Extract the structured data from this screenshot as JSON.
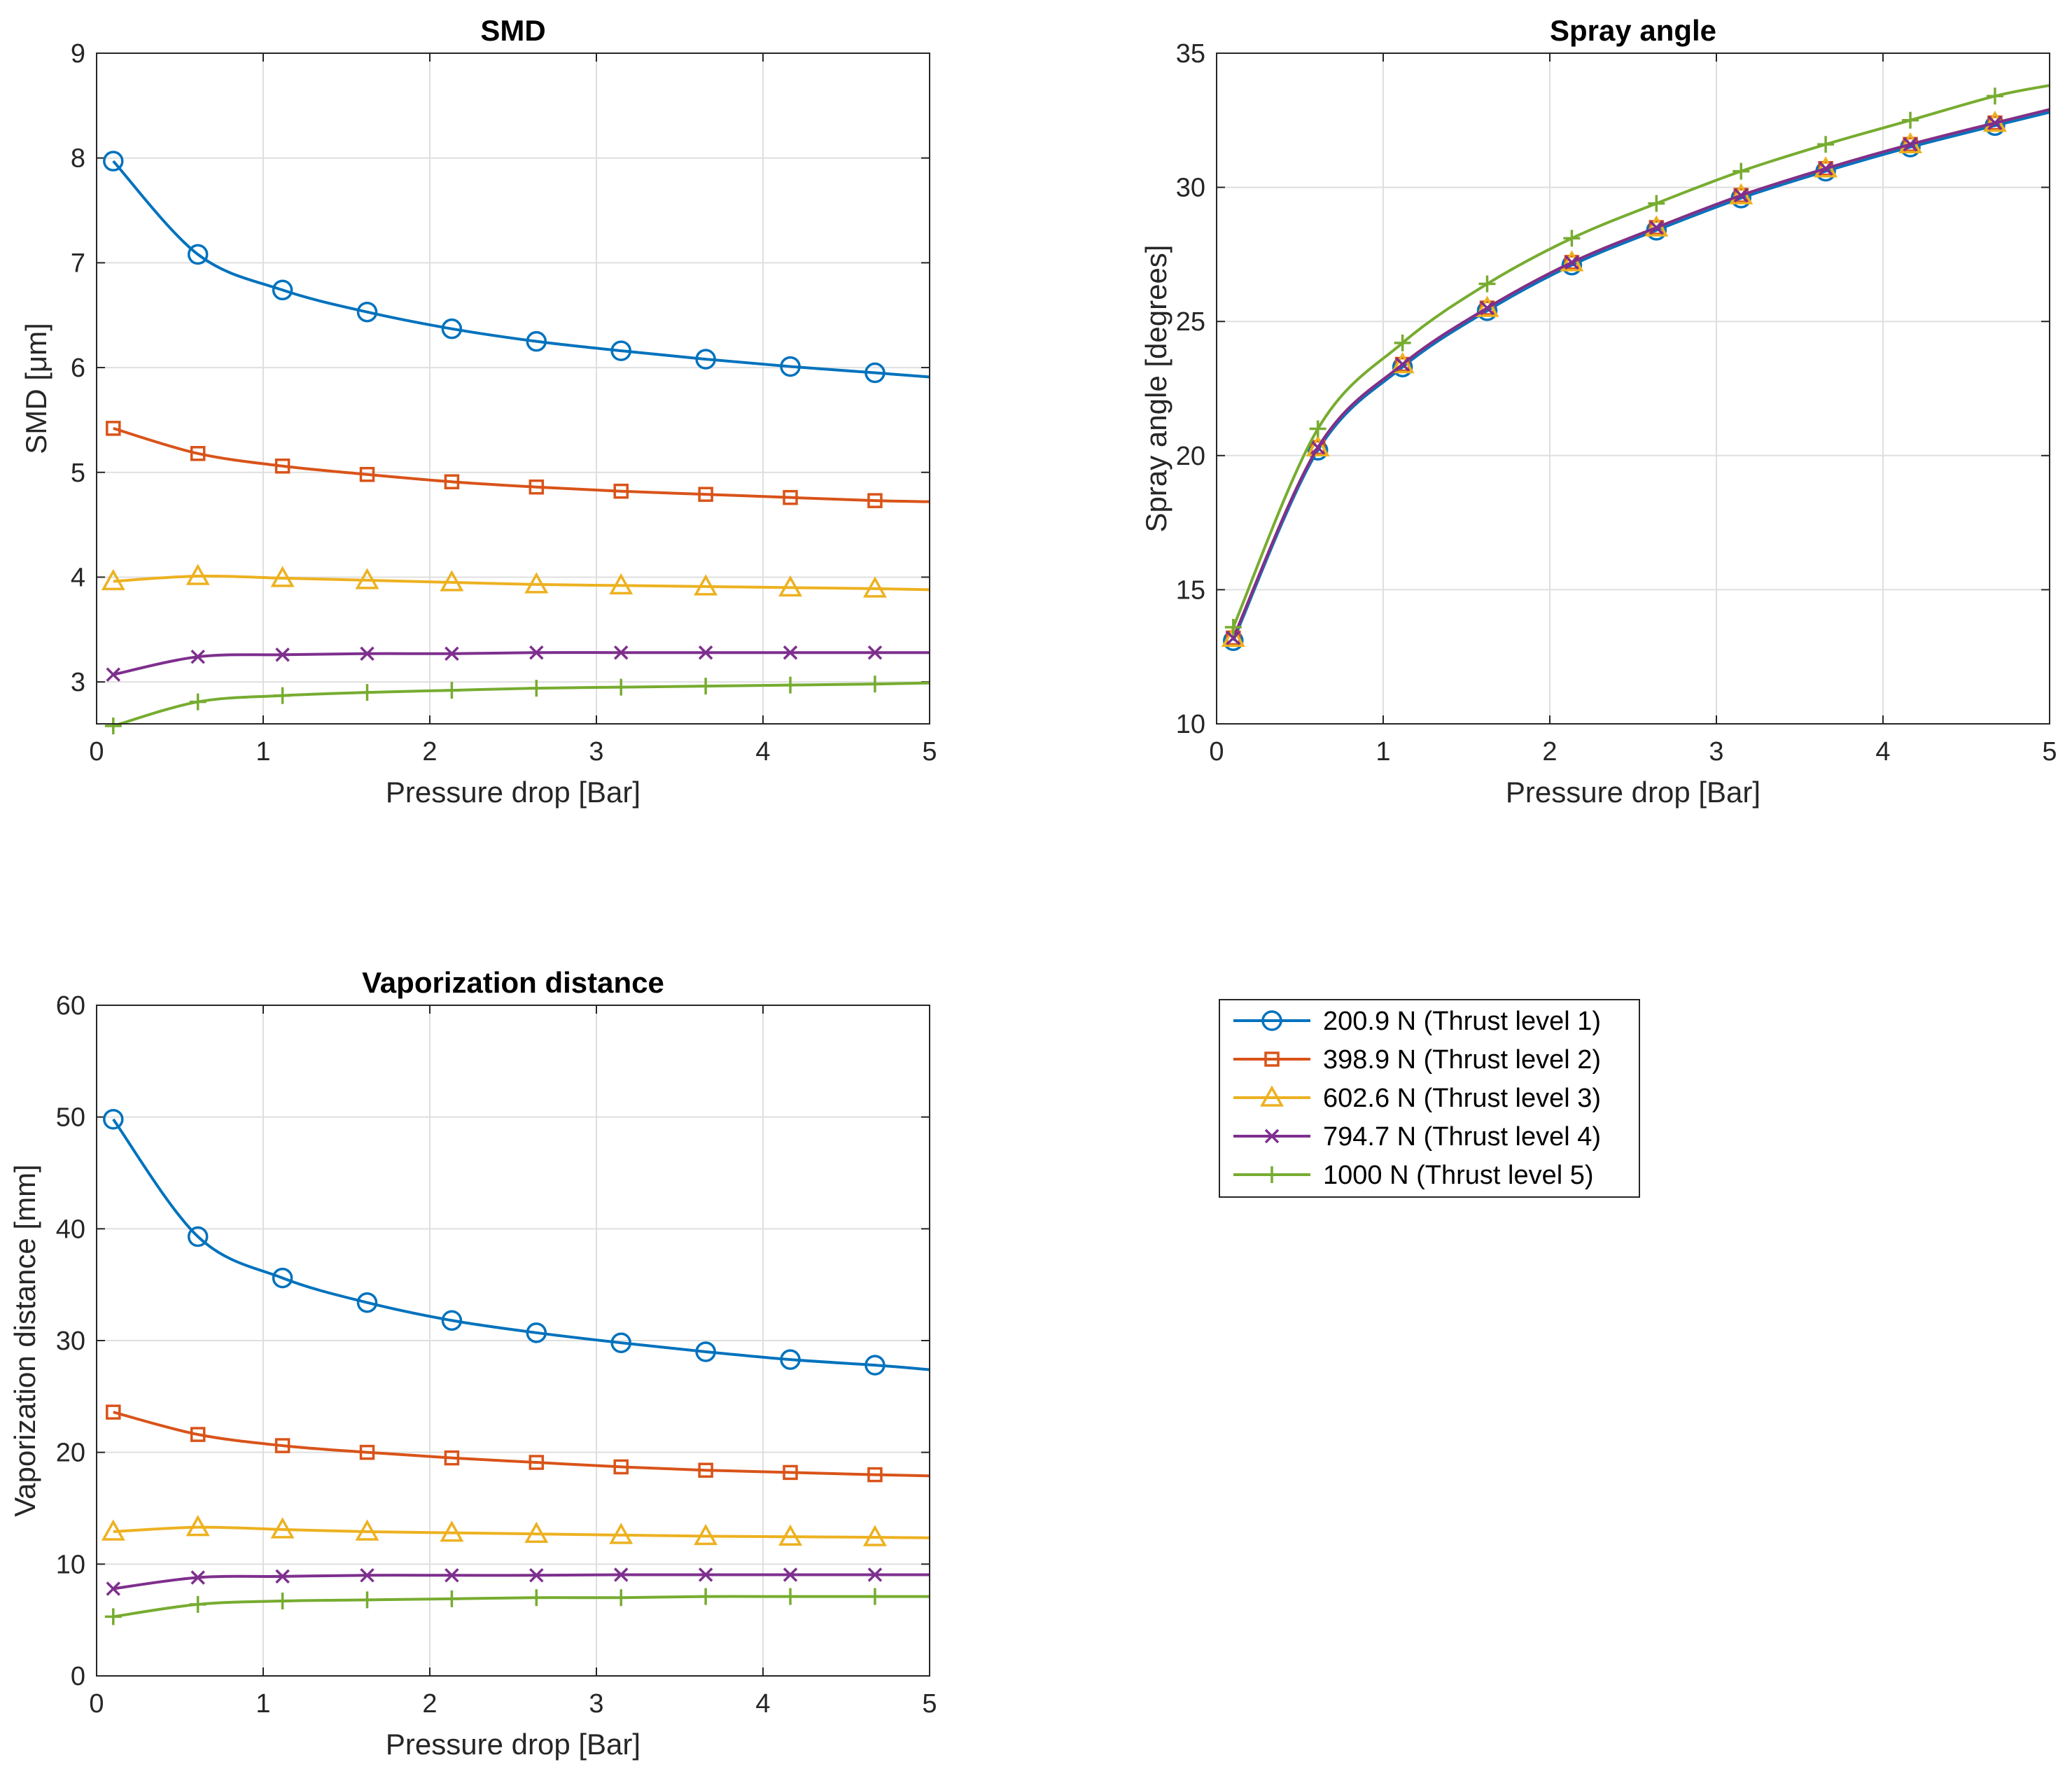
{
  "legend": {
    "placement": "right-of-bottom-left-panel",
    "entries": [
      {
        "label": "200.9 N (Thrust level 1)",
        "color": "#0072BD",
        "marker": "circle"
      },
      {
        "label": "398.9 N (Thrust level 2)",
        "color": "#D95319",
        "marker": "square"
      },
      {
        "label": "602.6 N (Thrust level 3)",
        "color": "#EDB120",
        "marker": "triangle"
      },
      {
        "label": "794.7 N (Thrust level 4)",
        "color": "#7E2F8E",
        "marker": "x"
      },
      {
        "label": "1000 N (Thrust level 5)",
        "color": "#77AC30",
        "marker": "plus"
      }
    ]
  },
  "chart_data": [
    {
      "type": "line",
      "title": "SMD",
      "xlabel": "Pressure drop [Bar]",
      "ylabel": "SMD [μm]",
      "xlim": [
        0,
        5
      ],
      "ylim": [
        2.6,
        9
      ],
      "xticks": [
        "0",
        "1",
        "2",
        "3",
        "4",
        "5"
      ],
      "yticks": [
        "3",
        "4",
        "5",
        "6",
        "7",
        "8",
        "9"
      ],
      "grid": true,
      "x": [
        0.1,
        0.608,
        1.116,
        1.624,
        2.132,
        2.64,
        3.148,
        3.656,
        4.164,
        4.672,
        5.0
      ],
      "series": [
        {
          "name": "200.9 N (Thrust level 1)",
          "values": [
            7.97,
            7.08,
            6.74,
            6.53,
            6.37,
            6.25,
            6.16,
            6.08,
            6.01,
            5.95,
            5.91
          ]
        },
        {
          "name": "398.9 N (Thrust level 2)",
          "values": [
            5.42,
            5.18,
            5.06,
            4.98,
            4.91,
            4.86,
            4.82,
            4.79,
            4.76,
            4.73,
            4.72
          ]
        },
        {
          "name": "602.6 N (Thrust level 3)",
          "values": [
            3.96,
            4.01,
            3.99,
            3.97,
            3.95,
            3.93,
            3.92,
            3.91,
            3.9,
            3.89,
            3.88
          ]
        },
        {
          "name": "794.7 N (Thrust level 4)",
          "values": [
            3.07,
            3.24,
            3.26,
            3.27,
            3.27,
            3.28,
            3.28,
            3.28,
            3.28,
            3.28,
            3.28
          ]
        },
        {
          "name": "1000 N (Thrust level 5)",
          "values": [
            2.58,
            2.81,
            2.87,
            2.9,
            2.92,
            2.94,
            2.95,
            2.96,
            2.97,
            2.98,
            2.99
          ]
        }
      ]
    },
    {
      "type": "line",
      "title": "Spray angle",
      "xlabel": "Pressure drop [Bar]",
      "ylabel": "Spray angle [degrees]",
      "xlim": [
        0,
        5
      ],
      "ylim": [
        10,
        35
      ],
      "xticks": [
        "0",
        "1",
        "2",
        "3",
        "4",
        "5"
      ],
      "yticks": [
        "10",
        "15",
        "20",
        "25",
        "30",
        "35"
      ],
      "grid": true,
      "x": [
        0.1,
        0.608,
        1.116,
        1.624,
        2.132,
        2.64,
        3.148,
        3.656,
        4.164,
        4.672,
        5.0
      ],
      "series": [
        {
          "name": "200.9 N (Thrust level 1)",
          "values": [
            13.1,
            20.2,
            23.3,
            25.4,
            27.1,
            28.4,
            29.6,
            30.6,
            31.5,
            32.3,
            32.8
          ]
        },
        {
          "name": "398.9 N (Thrust level 2)",
          "values": [
            13.2,
            20.3,
            23.4,
            25.5,
            27.2,
            28.5,
            29.7,
            30.7,
            31.6,
            32.4,
            32.9
          ]
        },
        {
          "name": "602.6 N (Thrust level 3)",
          "values": [
            13.2,
            20.3,
            23.4,
            25.5,
            27.2,
            28.5,
            29.7,
            30.7,
            31.6,
            32.4,
            32.9
          ]
        },
        {
          "name": "794.7 N (Thrust level 4)",
          "values": [
            13.2,
            20.3,
            23.4,
            25.5,
            27.2,
            28.5,
            29.7,
            30.7,
            31.6,
            32.4,
            32.9
          ]
        },
        {
          "name": "1000 N (Thrust level 5)",
          "values": [
            13.6,
            21.0,
            24.2,
            26.4,
            28.1,
            29.4,
            30.6,
            31.6,
            32.5,
            33.4,
            33.8
          ]
        }
      ]
    },
    {
      "type": "line",
      "title": "Vaporization distance",
      "xlabel": "Pressure drop [Bar]",
      "ylabel": "Vaporization distance [mm]",
      "xlim": [
        0,
        5
      ],
      "ylim": [
        0,
        60
      ],
      "xticks": [
        "0",
        "1",
        "2",
        "3",
        "4",
        "5"
      ],
      "yticks": [
        "0",
        "10",
        "20",
        "30",
        "40",
        "50",
        "60"
      ],
      "grid": true,
      "x": [
        0.1,
        0.608,
        1.116,
        1.624,
        2.132,
        2.64,
        3.148,
        3.656,
        4.164,
        4.672,
        5.0
      ],
      "series": [
        {
          "name": "200.9 N (Thrust level 1)",
          "values": [
            49.8,
            39.3,
            35.6,
            33.4,
            31.8,
            30.7,
            29.8,
            29.0,
            28.3,
            27.8,
            27.4
          ]
        },
        {
          "name": "398.9 N (Thrust level 2)",
          "values": [
            23.6,
            21.6,
            20.6,
            20.0,
            19.5,
            19.1,
            18.7,
            18.4,
            18.2,
            18.0,
            17.9
          ]
        },
        {
          "name": "602.6 N (Thrust level 3)",
          "values": [
            12.9,
            13.3,
            13.1,
            12.9,
            12.8,
            12.7,
            12.6,
            12.5,
            12.45,
            12.4,
            12.35
          ]
        },
        {
          "name": "794.7 N (Thrust level 4)",
          "values": [
            7.8,
            8.8,
            8.9,
            9.0,
            9.0,
            9.0,
            9.05,
            9.05,
            9.05,
            9.05,
            9.05
          ]
        },
        {
          "name": "1000 N (Thrust level 5)",
          "values": [
            5.3,
            6.4,
            6.7,
            6.8,
            6.9,
            7.0,
            7.0,
            7.1,
            7.1,
            7.1,
            7.1
          ]
        }
      ]
    }
  ]
}
